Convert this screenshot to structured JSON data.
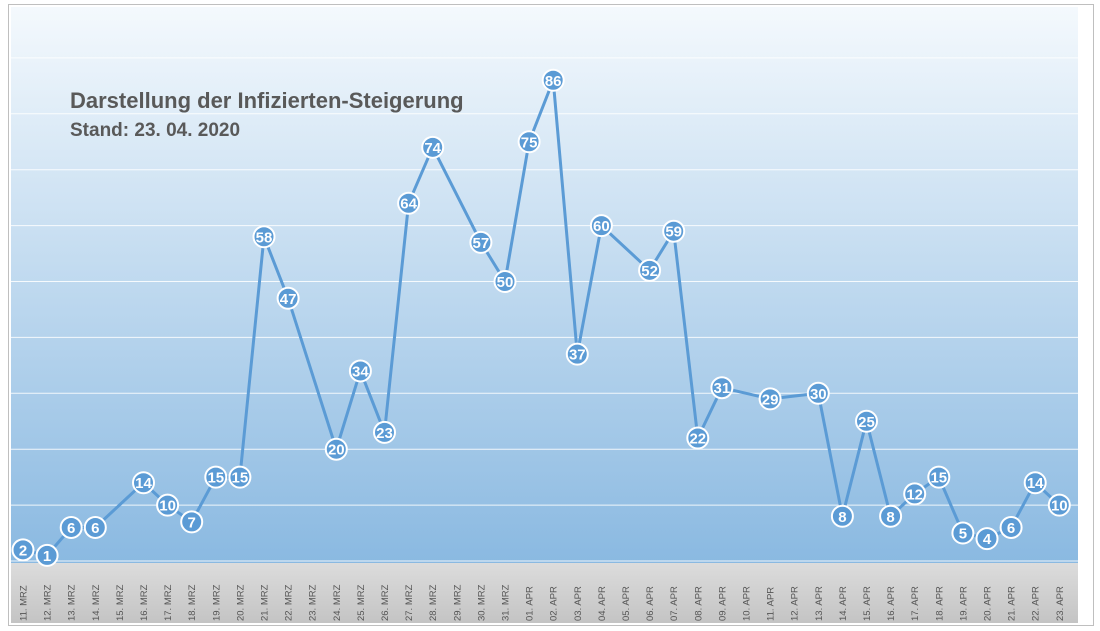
{
  "chart_data": {
    "type": "line",
    "title": "Darstellung der Infizierten-Steigerung",
    "subtitle": "Stand: 23. 04. 2020",
    "xlabel": "",
    "ylabel": "",
    "ylim": [
      0,
      90
    ],
    "grid": true,
    "legend": "none",
    "line_color": "#5b9bd5",
    "categories": [
      "11. MRZ",
      "12. MRZ",
      "13. MRZ",
      "14. MRZ",
      "15. MRZ",
      "16. MRZ",
      "17. MRZ",
      "18. MRZ",
      "19. MRZ",
      "20. MRZ",
      "21. MRZ",
      "22. MRZ",
      "23. MRZ",
      "24. MRZ",
      "25. MRZ",
      "26. MRZ",
      "27. MRZ",
      "28. MRZ",
      "29. MRZ",
      "30. MRZ",
      "31. MRZ",
      "01. APR",
      "02. APR",
      "03. APR",
      "04. APR",
      "05. APR",
      "06. APR",
      "07. APR",
      "08. APR",
      "09. APR",
      "10. APR",
      "11. APR",
      "12. APR",
      "13. APR",
      "14. APR",
      "15. APR",
      "16. APR",
      "17. APR",
      "18. APR",
      "19. APR",
      "20. APR",
      "21. APR",
      "22. APR",
      "23. APR"
    ],
    "values": [
      2,
      1,
      6,
      6,
      null,
      14,
      10,
      7,
      15,
      15,
      58,
      47,
      null,
      20,
      34,
      23,
      64,
      74,
      null,
      57,
      50,
      75,
      86,
      37,
      60,
      null,
      52,
      59,
      22,
      31,
      null,
      29,
      null,
      30,
      8,
      25,
      8,
      12,
      15,
      5,
      4,
      6,
      14,
      10
    ]
  }
}
